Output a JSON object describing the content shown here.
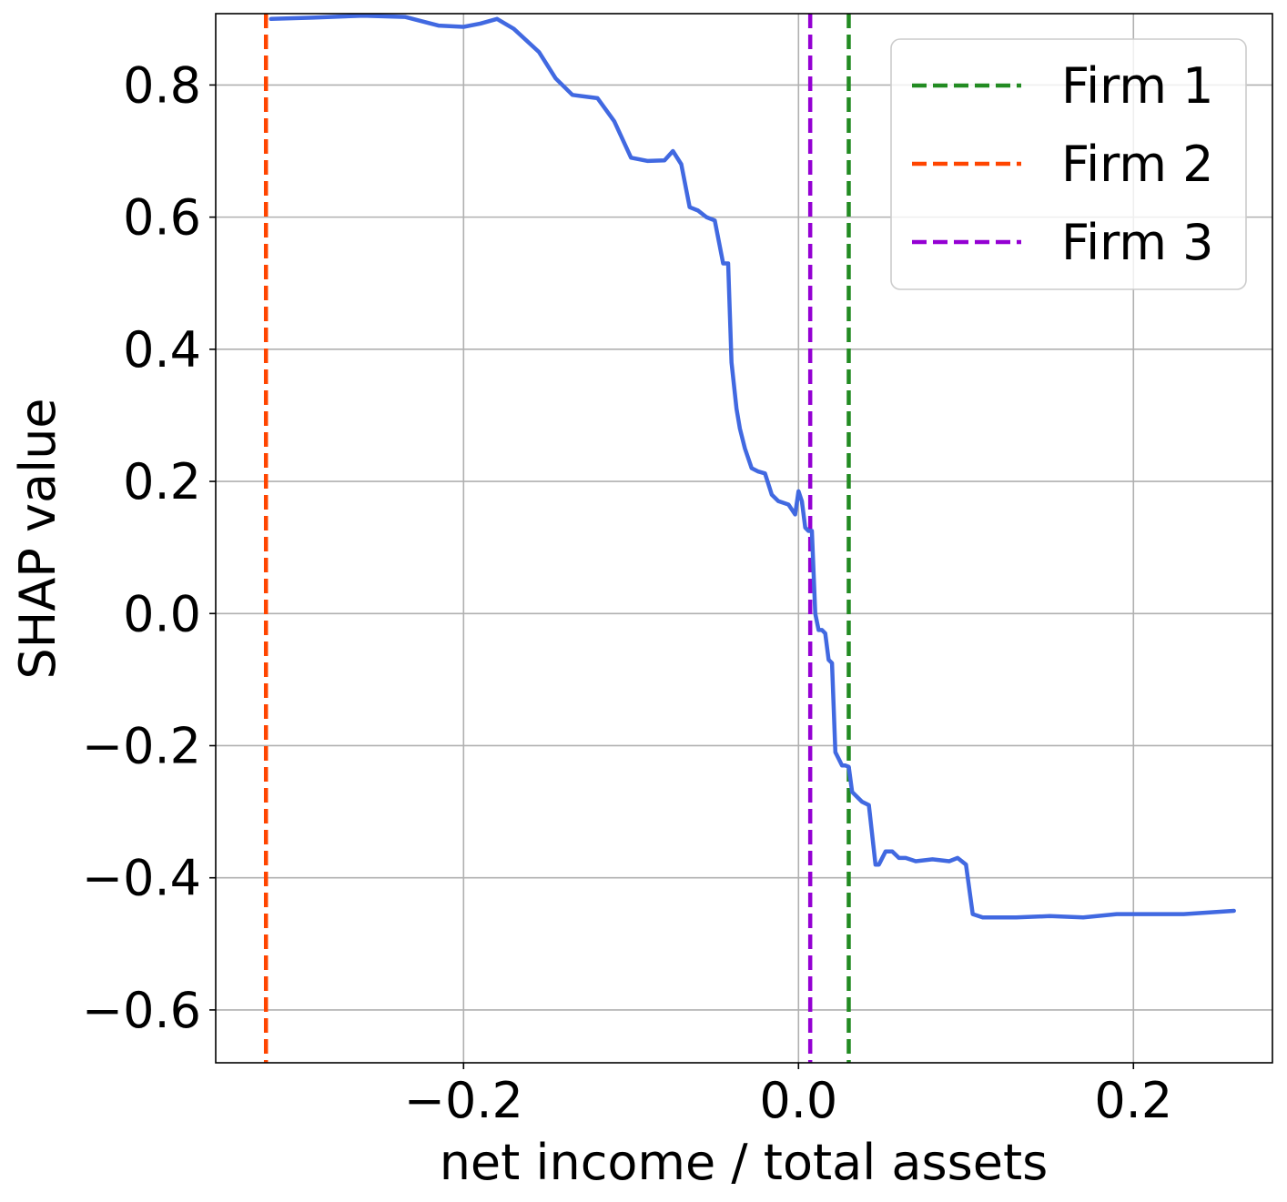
{
  "chart_data": {
    "type": "line",
    "title": "",
    "xlabel": "net income / total assets",
    "ylabel": "SHAP value",
    "xlim": [
      -0.348,
      0.283
    ],
    "ylim": [
      -0.68,
      0.908
    ],
    "grid": true,
    "x_ticks": [
      -0.2,
      0.0,
      0.2
    ],
    "x_tick_labels": [
      "−0.2",
      "0.0",
      "0.2"
    ],
    "y_ticks": [
      0.8,
      0.6,
      0.4,
      0.2,
      0.0,
      -0.2,
      -0.4,
      -0.6
    ],
    "y_tick_labels": [
      "0.8",
      "0.6",
      "0.4",
      "0.2",
      "0.0",
      "−0.2",
      "−0.4",
      "−0.6"
    ],
    "series": [
      {
        "name": "SHAP",
        "color": "#4169e1",
        "x": [
          -0.315,
          -0.29,
          -0.26,
          -0.235,
          -0.215,
          -0.2,
          -0.19,
          -0.18,
          -0.17,
          -0.155,
          -0.145,
          -0.135,
          -0.12,
          -0.11,
          -0.1,
          -0.09,
          -0.08,
          -0.075,
          -0.07,
          -0.065,
          -0.06,
          -0.055,
          -0.05,
          -0.045,
          -0.042,
          -0.04,
          -0.037,
          -0.035,
          -0.032,
          -0.028,
          -0.024,
          -0.02,
          -0.016,
          -0.012,
          -0.006,
          -0.002,
          0.0,
          0.002,
          0.004,
          0.006,
          0.008,
          0.01,
          0.012,
          0.014,
          0.016,
          0.018,
          0.02,
          0.022,
          0.024,
          0.026,
          0.028,
          0.03,
          0.032,
          0.036,
          0.038,
          0.042,
          0.046,
          0.048,
          0.052,
          0.056,
          0.06,
          0.064,
          0.07,
          0.08,
          0.09,
          0.095,
          0.1,
          0.104,
          0.11,
          0.13,
          0.15,
          0.17,
          0.19,
          0.21,
          0.23,
          0.26
        ],
        "y": [
          0.9,
          0.902,
          0.905,
          0.903,
          0.89,
          0.888,
          0.893,
          0.9,
          0.885,
          0.85,
          0.81,
          0.785,
          0.78,
          0.745,
          0.69,
          0.685,
          0.686,
          0.7,
          0.68,
          0.615,
          0.61,
          0.6,
          0.595,
          0.53,
          0.53,
          0.38,
          0.31,
          0.28,
          0.25,
          0.22,
          0.215,
          0.212,
          0.18,
          0.17,
          0.165,
          0.15,
          0.185,
          0.17,
          0.13,
          0.125,
          0.125,
          0.0,
          -0.025,
          -0.025,
          -0.03,
          -0.07,
          -0.075,
          -0.21,
          -0.22,
          -0.23,
          -0.23,
          -0.232,
          -0.27,
          -0.28,
          -0.285,
          -0.29,
          -0.38,
          -0.38,
          -0.36,
          -0.36,
          -0.37,
          -0.37,
          -0.375,
          -0.372,
          -0.375,
          -0.37,
          -0.38,
          -0.455,
          -0.46,
          -0.46,
          -0.458,
          -0.46,
          -0.455,
          -0.455,
          -0.455,
          -0.45
        ]
      }
    ],
    "vlines": [
      {
        "name": "Firm 1",
        "x": 0.03,
        "color": "#228b22"
      },
      {
        "name": "Firm 2",
        "x": -0.318,
        "color": "#ff4500"
      },
      {
        "name": "Firm 3",
        "x": 0.007,
        "color": "#9400d3"
      }
    ],
    "legend": {
      "position": "top-right",
      "entries": [
        "Firm 1",
        "Firm 2",
        "Firm 3"
      ]
    }
  }
}
